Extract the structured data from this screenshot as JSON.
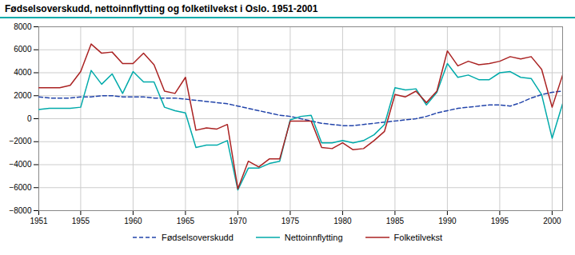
{
  "chart_data": {
    "type": "line",
    "title": "Fødselsoverskudd, nettoinnflytting og folketilvekst i Oslo. 1951-2001",
    "x": [
      1951,
      1952,
      1953,
      1954,
      1955,
      1956,
      1957,
      1958,
      1959,
      1960,
      1961,
      1962,
      1963,
      1964,
      1965,
      1966,
      1967,
      1968,
      1969,
      1970,
      1971,
      1972,
      1973,
      1974,
      1975,
      1976,
      1977,
      1978,
      1979,
      1980,
      1981,
      1982,
      1983,
      1984,
      1985,
      1986,
      1987,
      1988,
      1989,
      1990,
      1991,
      1992,
      1993,
      1994,
      1995,
      1996,
      1997,
      1998,
      1999,
      2000,
      2001
    ],
    "series": [
      {
        "name": "Fødselsoverskudd",
        "color": "#2244aa",
        "line_style": "dashed",
        "values": [
          1900,
          1800,
          1800,
          1800,
          1900,
          1900,
          2000,
          2000,
          1900,
          1900,
          1900,
          1800,
          1800,
          1800,
          1700,
          1600,
          1500,
          1400,
          1300,
          1100,
          900,
          700,
          500,
          300,
          200,
          0,
          -200,
          -400,
          -500,
          -600,
          -600,
          -500,
          -400,
          -300,
          -200,
          -100,
          0,
          200,
          500,
          700,
          900,
          1000,
          1100,
          1200,
          1200,
          1100,
          1400,
          1800,
          2100,
          2300,
          2400
        ]
      },
      {
        "name": "Nettoinnflytting",
        "color": "#00aaaa",
        "line_style": "solid",
        "values": [
          800,
          900,
          900,
          900,
          1000,
          4200,
          3000,
          3900,
          2200,
          4100,
          3200,
          3200,
          1000,
          700,
          500,
          -2500,
          -2300,
          -2300,
          -1900,
          -6200,
          -4300,
          -4300,
          -3900,
          -3700,
          -100,
          200,
          300,
          -2100,
          -2100,
          -1900,
          -2100,
          -1900,
          -1400,
          -500,
          2700,
          2500,
          2600,
          1200,
          2300,
          4800,
          3600,
          3800,
          3400,
          3400,
          4000,
          4100,
          3600,
          3500,
          2100,
          -1700,
          1300
        ]
      },
      {
        "name": "Folketilvekst",
        "color": "#aa2222",
        "line_style": "solid",
        "values": [
          2700,
          2700,
          2700,
          2900,
          4100,
          6500,
          5700,
          5800,
          4800,
          4800,
          5700,
          4700,
          2400,
          2200,
          3600,
          -1000,
          -800,
          -900,
          -500,
          -6100,
          -3700,
          -4200,
          -3500,
          -3500,
          -200,
          -200,
          -200,
          -2500,
          -2600,
          -2100,
          -2700,
          -2600,
          -1900,
          -1100,
          2100,
          1900,
          2400,
          1400,
          2400,
          5900,
          4600,
          5000,
          4700,
          4800,
          5000,
          5400,
          5200,
          5400,
          4300,
          1000,
          3800
        ]
      }
    ],
    "xlim": [
      1951,
      2001
    ],
    "xticks": [
      1951,
      1955,
      1960,
      1965,
      1970,
      1975,
      1980,
      1985,
      1990,
      1995,
      2000
    ],
    "ylim": [
      -8000,
      8000
    ],
    "yticks": [
      -8000,
      -6000,
      -4000,
      -2000,
      0,
      2000,
      4000,
      6000,
      8000
    ],
    "grid": true,
    "legend": "bottom"
  }
}
